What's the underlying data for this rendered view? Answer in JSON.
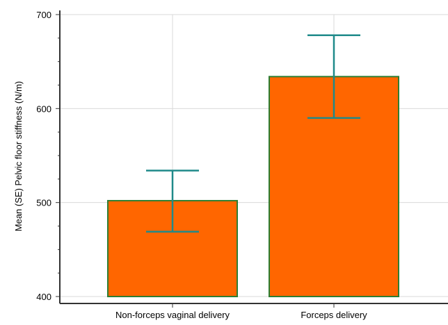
{
  "chart_data": {
    "type": "bar",
    "categories": [
      "Non-forceps vaginal delivery",
      "Forceps delivery"
    ],
    "values": [
      502,
      634
    ],
    "error_low": [
      469,
      590
    ],
    "error_high": [
      534,
      678
    ],
    "ylabel": "Mean (SE) Pelvic floor stiffness (N/m)",
    "xlabel": "",
    "title": "",
    "ylim": [
      400,
      700
    ],
    "yticks": [
      400,
      500,
      600,
      700
    ],
    "grid": true,
    "colors": {
      "bar_fill": "#FF6600",
      "bar_stroke": "#2E7D32",
      "error_bar": "#1F8A8A",
      "grid": "#D9D9D9",
      "axis": "#333333"
    }
  }
}
